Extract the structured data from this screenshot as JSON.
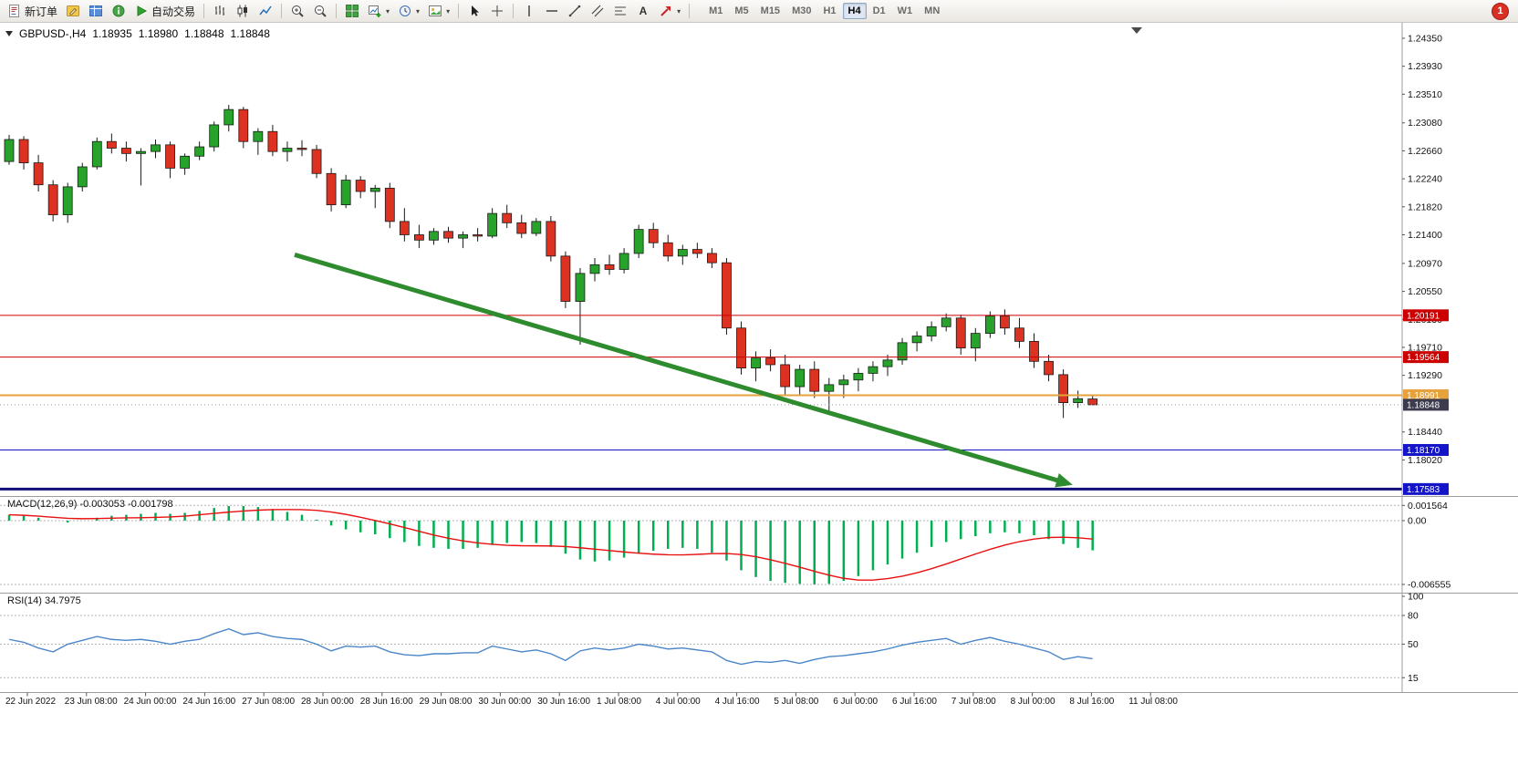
{
  "toolbar": {
    "caret_glyph": "▾",
    "buttons": [
      {
        "name": "new-order",
        "label": "新订单",
        "icon": "new-order-icon"
      },
      {
        "name": "metaeditor",
        "icon": "metaeditor-icon"
      },
      {
        "name": "market-watch",
        "icon": "market-watch-icon"
      },
      {
        "name": "navigator",
        "icon": "navigator-icon"
      },
      {
        "name": "autotrading",
        "label": "自动交易",
        "icon": "autotrading-icon"
      },
      {
        "sep": true
      },
      {
        "name": "bar-chart",
        "icon": "bar-chart-icon"
      },
      {
        "name": "candlestick-chart",
        "icon": "candlestick-icon"
      },
      {
        "name": "line-chart",
        "icon": "line-chart-icon"
      },
      {
        "sep": true
      },
      {
        "name": "zoom-in",
        "icon": "zoom-in-icon"
      },
      {
        "name": "zoom-out",
        "icon": "zoom-out-icon"
      },
      {
        "sep": true
      },
      {
        "name": "tile-windows",
        "icon": "tile-windows-icon"
      },
      {
        "name": "new-chart",
        "icon": "new-chart-icon",
        "caret": true
      },
      {
        "name": "periods",
        "icon": "clock-icon",
        "caret": true
      },
      {
        "name": "templates",
        "icon": "template-icon",
        "caret": true
      },
      {
        "sep": true
      },
      {
        "name": "cursor",
        "icon": "cursor-icon"
      },
      {
        "name": "crosshair",
        "icon": "crosshair-icon"
      },
      {
        "sep": true
      },
      {
        "name": "vertical-line",
        "icon": "vertical-line-icon"
      },
      {
        "name": "horizontal-line",
        "icon": "horizontal-line-icon"
      },
      {
        "name": "trendline",
        "icon": "trendline-icon"
      },
      {
        "name": "equidistant-channel",
        "icon": "channel-icon"
      },
      {
        "name": "fibonacci",
        "icon": "fibonacci-icon"
      },
      {
        "name": "text-label",
        "icon": "text-icon"
      },
      {
        "name": "arrows",
        "icon": "arrow-object-icon",
        "caret": true
      },
      {
        "sep": true
      }
    ],
    "timeframes": [
      "M1",
      "M5",
      "M15",
      "M30",
      "H1",
      "H4",
      "D1",
      "W1",
      "MN"
    ],
    "active_timeframe": "H4",
    "notification_badge": "1"
  },
  "chart": {
    "title": {
      "symbol_tf": "GBPUSD-,H4",
      "open": "1.18935",
      "high": "1.18980",
      "low": "1.18848",
      "close": "1.18848"
    }
  },
  "colors": {
    "up": "#27a32b",
    "down": "#dd3222",
    "wick": "#1a1a1a",
    "macd_hist": "#00b050",
    "macd_signal": "#e81010",
    "rsi": "#4a86c8",
    "separator": "#9c9c9c",
    "level_dash": "#b5b5b5",
    "axis_text": "#111"
  },
  "chart_data": {
    "type": "candlestick",
    "symbol": "GBPUSD-",
    "timeframe": "H4",
    "price_axis": {
      "min": 1.1748,
      "max": 1.245,
      "ticks": [
        1.2435,
        1.2393,
        1.2351,
        1.2308,
        1.2266,
        1.2224,
        1.2182,
        1.214,
        1.2097,
        1.2055,
        1.2013,
        1.1971,
        1.1929,
        1.1844,
        1.1802
      ]
    },
    "hlines": [
      {
        "price": 1.20191,
        "label": "1.20191",
        "color": "#cc0000",
        "width": 1,
        "tag_bg": "#cc0000"
      },
      {
        "price": 1.19564,
        "label": "1.19564",
        "color": "#cc0000",
        "width": 1,
        "tag_bg": "#cc0000"
      },
      {
        "price": 1.18991,
        "label": "1.18991",
        "color": "#e6a23c",
        "width": 2,
        "tag_bg": "#e6a23c"
      },
      {
        "price": 1.1817,
        "label": "1.18170",
        "color": "#1414c8",
        "width": 1,
        "tag_bg": "#1414c8"
      },
      {
        "price": 1.17583,
        "label": "1.17583",
        "color": "#101078",
        "width": 3,
        "tag_bg": "#1414c8"
      }
    ],
    "bid": {
      "price": 1.18848,
      "label": "1.18848",
      "tag_bg": "#3c3c4e"
    },
    "trend_arrow": {
      "from": {
        "index": 19.5,
        "price": 1.211
      },
      "to": {
        "index": 71.8,
        "price": 1.177
      },
      "color": "#2e8b2e",
      "width": 5
    },
    "candles": [
      [
        1.225,
        1.229,
        1.2245,
        1.2283
      ],
      [
        1.2283,
        1.2288,
        1.2238,
        1.2248
      ],
      [
        1.2248,
        1.226,
        1.2205,
        1.2215
      ],
      [
        1.2215,
        1.2222,
        1.216,
        1.217
      ],
      [
        1.217,
        1.2218,
        1.2158,
        1.2212
      ],
      [
        1.2212,
        1.2248,
        1.2205,
        1.2242
      ],
      [
        1.2242,
        1.2286,
        1.2238,
        1.228
      ],
      [
        1.228,
        1.2292,
        1.2262,
        1.227
      ],
      [
        1.227,
        1.228,
        1.225,
        1.2262
      ],
      [
        1.2262,
        1.227,
        1.2214,
        1.2265
      ],
      [
        1.2265,
        1.2283,
        1.2255,
        1.2275
      ],
      [
        1.2275,
        1.228,
        1.2225,
        1.224
      ],
      [
        1.224,
        1.2262,
        1.223,
        1.2258
      ],
      [
        1.2258,
        1.228,
        1.2252,
        1.2272
      ],
      [
        1.2272,
        1.231,
        1.2265,
        1.2305
      ],
      [
        1.2305,
        1.2335,
        1.2295,
        1.2328
      ],
      [
        1.2328,
        1.2332,
        1.227,
        1.228
      ],
      [
        1.228,
        1.23,
        1.226,
        1.2295
      ],
      [
        1.2295,
        1.2305,
        1.2258,
        1.2265
      ],
      [
        1.2265,
        1.228,
        1.225,
        1.227
      ],
      [
        1.227,
        1.2282,
        1.2258,
        1.2268
      ],
      [
        1.2268,
        1.2275,
        1.2225,
        1.2232
      ],
      [
        1.2232,
        1.224,
        1.2175,
        1.2185
      ],
      [
        1.2185,
        1.223,
        1.218,
        1.2222
      ],
      [
        1.2222,
        1.2228,
        1.2195,
        1.2205
      ],
      [
        1.2205,
        1.2215,
        1.218,
        1.221
      ],
      [
        1.221,
        1.2218,
        1.215,
        1.216
      ],
      [
        1.216,
        1.218,
        1.213,
        1.214
      ],
      [
        1.214,
        1.2155,
        1.212,
        1.2132
      ],
      [
        1.2132,
        1.215,
        1.2125,
        1.2145
      ],
      [
        1.2145,
        1.2152,
        1.2128,
        1.2135
      ],
      [
        1.2135,
        1.2145,
        1.212,
        1.214
      ],
      [
        1.214,
        1.215,
        1.213,
        1.2138
      ],
      [
        1.2138,
        1.218,
        1.2135,
        1.2172
      ],
      [
        1.2172,
        1.2185,
        1.215,
        1.2158
      ],
      [
        1.2158,
        1.217,
        1.2135,
        1.2142
      ],
      [
        1.2142,
        1.2165,
        1.2138,
        1.216
      ],
      [
        1.216,
        1.2168,
        1.21,
        1.2108
      ],
      [
        1.2108,
        1.2115,
        1.203,
        1.204
      ],
      [
        1.204,
        1.209,
        1.1975,
        1.2082
      ],
      [
        1.2082,
        1.2105,
        1.207,
        1.2095
      ],
      [
        1.2095,
        1.211,
        1.208,
        1.2088
      ],
      [
        1.2088,
        1.212,
        1.2082,
        1.2112
      ],
      [
        1.2112,
        1.2155,
        1.2105,
        1.2148
      ],
      [
        1.2148,
        1.2158,
        1.212,
        1.2128
      ],
      [
        1.2128,
        1.214,
        1.21,
        1.2108
      ],
      [
        1.2108,
        1.2125,
        1.2095,
        1.2118
      ],
      [
        1.2118,
        1.2128,
        1.2105,
        1.2112
      ],
      [
        1.2112,
        1.212,
        1.209,
        1.2098
      ],
      [
        1.2098,
        1.2105,
        1.199,
        1.2
      ],
      [
        1.2,
        1.201,
        1.193,
        1.194
      ],
      [
        1.194,
        1.1965,
        1.192,
        1.1955
      ],
      [
        1.1955,
        1.1968,
        1.1935,
        1.1945
      ],
      [
        1.1945,
        1.196,
        1.19,
        1.1912
      ],
      [
        1.1912,
        1.1945,
        1.19,
        1.1938
      ],
      [
        1.1938,
        1.195,
        1.1895,
        1.1905
      ],
      [
        1.1905,
        1.1925,
        1.1876,
        1.1915
      ],
      [
        1.1915,
        1.193,
        1.1895,
        1.1922
      ],
      [
        1.1922,
        1.194,
        1.1905,
        1.1932
      ],
      [
        1.1932,
        1.195,
        1.192,
        1.1942
      ],
      [
        1.1942,
        1.196,
        1.1928,
        1.1952
      ],
      [
        1.1952,
        1.1985,
        1.1945,
        1.1978
      ],
      [
        1.1978,
        1.1995,
        1.1965,
        1.1988
      ],
      [
        1.1988,
        1.201,
        1.198,
        1.2002
      ],
      [
        1.2002,
        1.2022,
        1.1995,
        1.2015
      ],
      [
        1.2015,
        1.202,
        1.196,
        1.197
      ],
      [
        1.197,
        1.2,
        1.195,
        1.1992
      ],
      [
        1.1992,
        1.2025,
        1.1985,
        1.2018
      ],
      [
        1.2018,
        1.2028,
        1.199,
        1.2
      ],
      [
        1.2,
        1.2015,
        1.197,
        1.198
      ],
      [
        1.198,
        1.1992,
        1.194,
        1.195
      ],
      [
        1.195,
        1.196,
        1.192,
        1.193
      ],
      [
        1.193,
        1.1938,
        1.1865,
        1.1888
      ],
      [
        1.1888,
        1.1906,
        1.188,
        1.1894
      ],
      [
        1.18935,
        1.1898,
        1.18848,
        1.18848
      ]
    ],
    "macd": {
      "label": "MACD(12,26,9)",
      "value_main": "-0.003053",
      "value_signal": "-0.001798",
      "ticks": [
        {
          "v": 0.001564,
          "label": "0.001564",
          "line": true
        },
        {
          "v": 0,
          "label": "0.00",
          "line": true
        },
        {
          "v": -0.006555,
          "label": "-0.006555",
          "line": true
        }
      ],
      "histogram": [
        0.0006,
        0.0005,
        0.0003,
        0.0,
        -0.0002,
        0.0,
        0.0003,
        0.0005,
        0.0006,
        0.0007,
        0.0008,
        0.0007,
        0.0008,
        0.001,
        0.0013,
        0.0015,
        0.0015,
        0.0014,
        0.0012,
        0.0009,
        0.0006,
        0.0001,
        -0.0005,
        -0.0009,
        -0.0012,
        -0.0014,
        -0.0018,
        -0.0022,
        -0.0026,
        -0.0028,
        -0.0029,
        -0.0029,
        -0.0028,
        -0.0025,
        -0.0023,
        -0.0022,
        -0.0023,
        -0.0027,
        -0.0034,
        -0.004,
        -0.0042,
        -0.0041,
        -0.0038,
        -0.0034,
        -0.0031,
        -0.0029,
        -0.0028,
        -0.0029,
        -0.0033,
        -0.0041,
        -0.0051,
        -0.0058,
        -0.0062,
        -0.0064,
        -0.0065,
        -0.00655,
        -0.0065,
        -0.0062,
        -0.0057,
        -0.0051,
        -0.0045,
        -0.0039,
        -0.0033,
        -0.0027,
        -0.0022,
        -0.0019,
        -0.0016,
        -0.0013,
        -0.0012,
        -0.0013,
        -0.0015,
        -0.0019,
        -0.0024,
        -0.0028,
        -0.003053
      ]
    },
    "rsi": {
      "label": "RSI(14)",
      "value": "34.7975",
      "ticks": [
        {
          "v": 100,
          "label": "100",
          "line": false
        },
        {
          "v": 80,
          "label": "80",
          "line": true
        },
        {
          "v": 50,
          "label": "50",
          "line": true
        },
        {
          "v": 15,
          "label": "15",
          "line": true
        }
      ],
      "values": [
        55,
        52,
        46,
        42,
        50,
        54,
        58,
        55,
        54,
        55,
        53,
        50,
        53,
        55,
        61,
        66,
        60,
        62,
        58,
        56,
        55,
        50,
        43,
        48,
        47,
        48,
        42,
        39,
        38,
        40,
        40,
        41,
        41,
        48,
        45,
        42,
        44,
        40,
        33,
        43,
        46,
        44,
        46,
        50,
        48,
        45,
        46,
        44,
        42,
        33,
        29,
        32,
        31,
        33,
        30,
        34,
        37,
        38,
        40,
        42,
        45,
        49,
        52,
        54,
        56,
        50,
        54,
        57,
        53,
        50,
        46,
        42,
        34,
        37,
        34.7975
      ]
    },
    "x_labels": [
      "22 Jun 2022",
      "23 Jun 08:00",
      "24 Jun 00:00",
      "24 Jun 16:00",
      "27 Jun 08:00",
      "28 Jun 00:00",
      "28 Jun 16:00",
      "29 Jun 08:00",
      "30 Jun 00:00",
      "30 Jun 16:00",
      "1 Jul 08:00",
      "4 Jul 00:00",
      "4 Jul 16:00",
      "5 Jul 08:00",
      "6 Jul 00:00",
      "6 Jul 16:00",
      "7 Jul 08:00",
      "8 Jul 00:00",
      "8 Jul 16:00",
      "11 Jul 08:00"
    ]
  }
}
